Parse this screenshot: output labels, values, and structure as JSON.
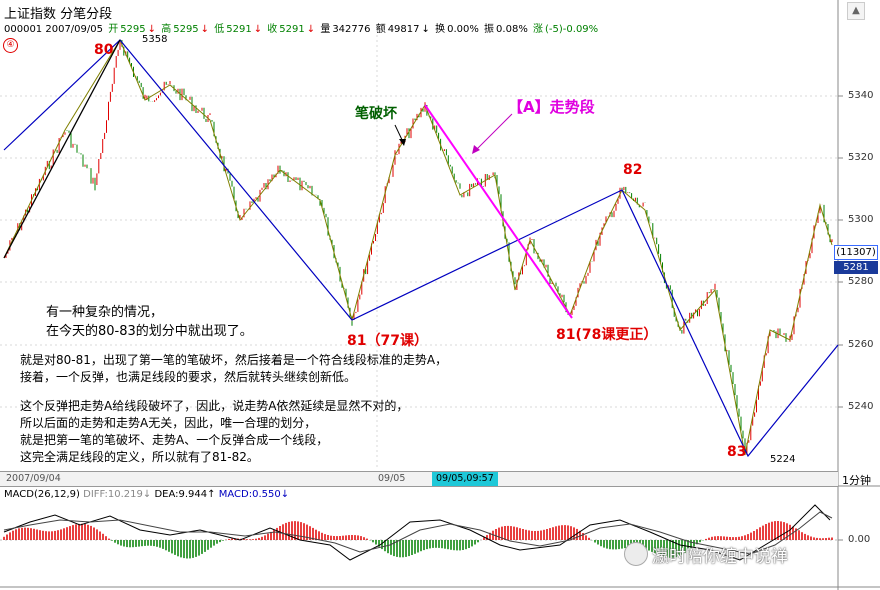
{
  "window": {
    "title": "上证指数 分笔分段"
  },
  "quote": {
    "code_date": "000001 2007/09/05",
    "open_label": "开",
    "open_value": "5295",
    "high_label": "高",
    "high_value": "5295",
    "low_label": "低",
    "low_value": "5291",
    "close_label": "收",
    "close_value": "5291",
    "volume_label": "量",
    "volume_value": "342776",
    "amount_label": "额",
    "amount_value": "49817",
    "turnover_label": "换",
    "turnover_value": "0.00%",
    "amplitude_label": "振",
    "amplitude_value": "0.08%",
    "change_label": "涨",
    "change_value": "(-5)-0.09%"
  },
  "panel_marker": "④",
  "price_axis": {
    "ticks": [
      "5340",
      "5320",
      "5300",
      "5280",
      "5260",
      "5240"
    ]
  },
  "price_box": {
    "volume_label": "(11307)",
    "last_price": "5281"
  },
  "pivots": {
    "p80": "80",
    "p80_value": "5358",
    "p81": "81（77课）",
    "p81b": "81(78课更正）",
    "p82": "82",
    "p83": "83",
    "p83_value": "5224"
  },
  "annotations": {
    "bi_break": "笔破坏",
    "trend_segment": "【A】走势段",
    "intro_1": "有一种复杂的情况，",
    "intro_2": "在今天的80-83的划分中就出现了。",
    "body_1": "就是对80-81，出现了第一笔的笔破坏，然后接着是一个符合线段标准的走势A，",
    "body_2": "接着，一个反弹，也满足线段的要求，然后就转头继续创新低。",
    "body_3": "这个反弹把走势A给线段破坏了，因此，说走势A依然延续是显然不对的，",
    "body_4": "所以后面的走势和走势A无关，因此，唯一合理的划分，",
    "body_5": "就是把第一笔的笔破坏、走势A、一个反弹合成一个线段，",
    "body_6": "这完全满足线段的定义，所以就有了81-82。"
  },
  "time_axis": {
    "left_date": "2007/09/04",
    "mid_date": "09/05",
    "cursor": "09/05,09:57",
    "period": "1分钟"
  },
  "macd": {
    "title": "MACD(26,12,9)",
    "diff_label": "DIFF:",
    "diff_value": "10.219↓",
    "dea_label": "DEA:",
    "dea_value": "9.944↑",
    "macd_label": "MACD:",
    "macd_value": "0.550↓",
    "zero_tick": "0.00"
  },
  "watermark": "瀛时陪你缠中说禅",
  "colors": {
    "up": "#e00000",
    "down": "#008000",
    "segment": "#0000c0",
    "trend_a": "#ff00ff",
    "cursor": "#1ec8d8"
  }
}
